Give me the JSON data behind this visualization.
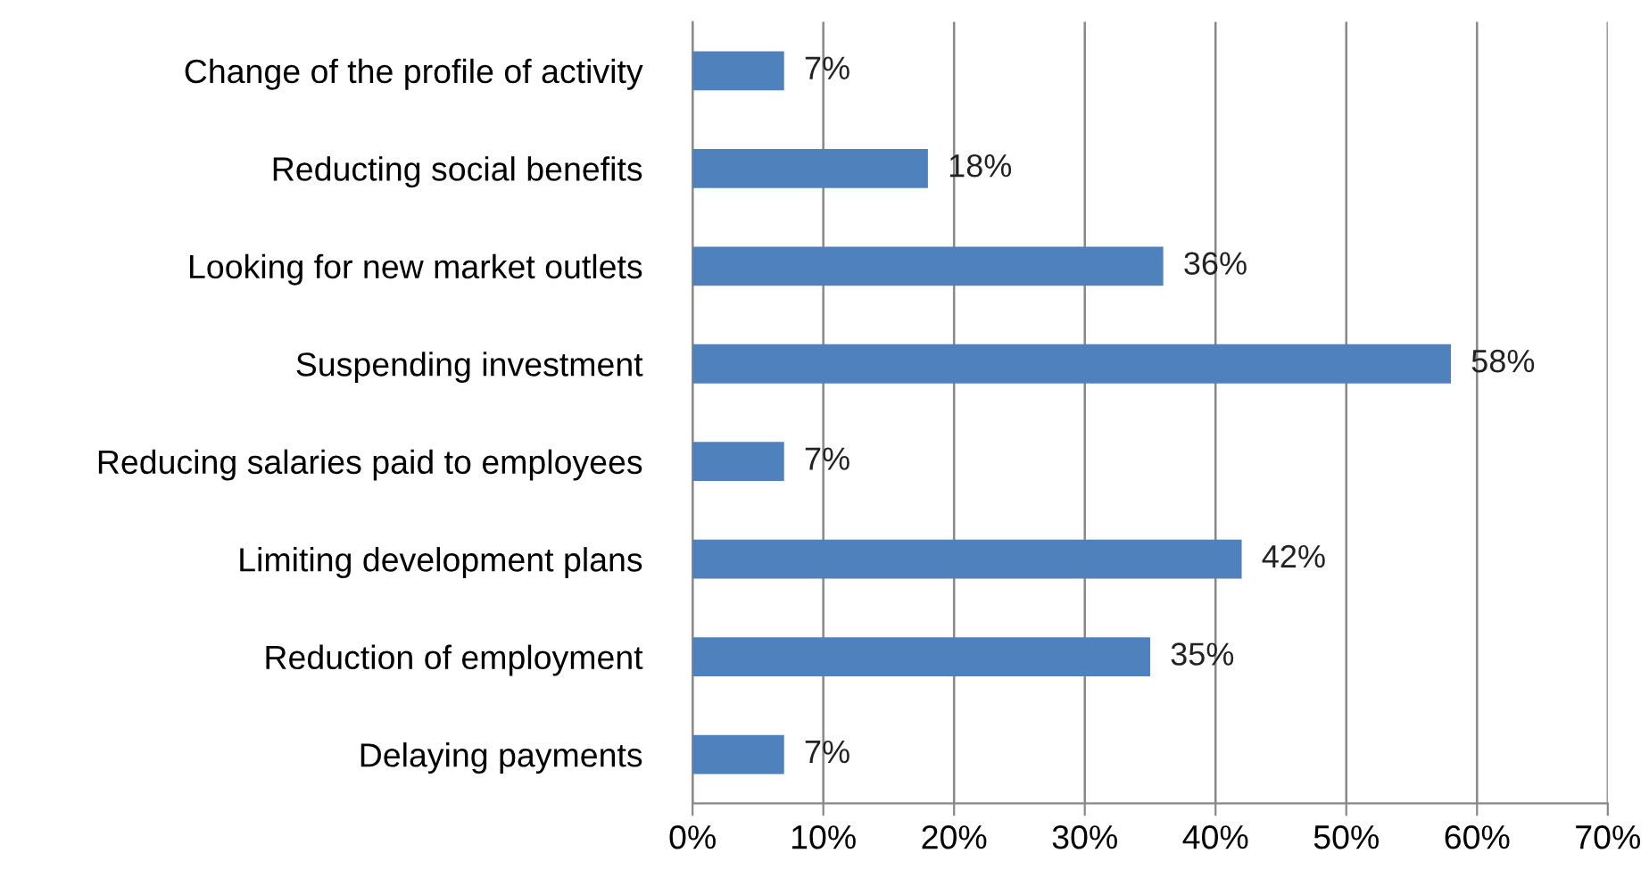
{
  "chart_data": {
    "type": "bar",
    "orientation": "horizontal",
    "categories": [
      "Change of the profile of activity",
      "Reducting social benefits",
      "Looking for new market outlets",
      "Suspending investment",
      "Reducing salaries paid to employees",
      "Limiting development plans",
      "Reduction of employment",
      "Delaying payments"
    ],
    "series": [
      {
        "color": "#4f81bd",
        "values": [
          7,
          18,
          36,
          58,
          7,
          42,
          35,
          7
        ],
        "value_labels": [
          "7%",
          "18%",
          "36%",
          "58%",
          "7%",
          "42%",
          "35%",
          "7%"
        ]
      }
    ],
    "xlim": [
      0,
      70
    ],
    "xticks": [
      {
        "value": 0,
        "label": "0%"
      },
      {
        "value": 10,
        "label": "10%"
      },
      {
        "value": 20,
        "label": "20%"
      },
      {
        "value": 30,
        "label": "30%"
      },
      {
        "value": 40,
        "label": "40%"
      },
      {
        "value": 50,
        "label": "50%"
      },
      {
        "value": 60,
        "label": "60%"
      },
      {
        "value": 70,
        "label": "70%"
      }
    ],
    "grid": "x",
    "legend": false
  }
}
